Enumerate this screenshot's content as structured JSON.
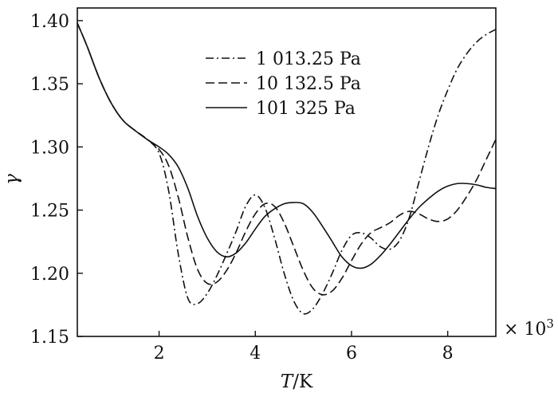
{
  "chart_data": {
    "type": "line",
    "xlabel_italic": "T",
    "xlabel_unit": "/K",
    "ylabel": "γ",
    "x_multiplier_prefix": "× 10",
    "x_multiplier_exp": "3",
    "xlim": [
      0.3,
      9.0
    ],
    "ylim": [
      1.15,
      1.41
    ],
    "xticks": [
      2,
      4,
      6,
      8
    ],
    "xtick_labels": [
      "2",
      "4",
      "6",
      "8"
    ],
    "yticks": [
      1.15,
      1.2,
      1.25,
      1.3,
      1.35,
      1.4
    ],
    "ytick_labels": [
      "1.15",
      "1.20",
      "1.25",
      "1.30",
      "1.35",
      "1.40"
    ],
    "grid": false,
    "legend_position": "top-center",
    "series": [
      {
        "name": "1 013.25 Pa",
        "style": "dashdot",
        "x": [
          0.3,
          0.5,
          0.75,
          1.0,
          1.25,
          1.5,
          1.75,
          2.0,
          2.2,
          2.4,
          2.6,
          2.8,
          3.0,
          3.2,
          3.4,
          3.6,
          3.8,
          4.0,
          4.2,
          4.4,
          4.6,
          4.8,
          5.0,
          5.2,
          5.4,
          5.6,
          5.8,
          6.0,
          6.2,
          6.4,
          6.6,
          6.8,
          7.0,
          7.2,
          7.4,
          7.6,
          7.8,
          8.0,
          8.2,
          8.4,
          8.6,
          8.8,
          9.0
        ],
        "y": [
          1.398,
          1.38,
          1.355,
          1.335,
          1.321,
          1.313,
          1.306,
          1.295,
          1.265,
          1.215,
          1.18,
          1.176,
          1.184,
          1.198,
          1.215,
          1.233,
          1.253,
          1.262,
          1.252,
          1.228,
          1.2,
          1.178,
          1.168,
          1.172,
          1.184,
          1.2,
          1.218,
          1.23,
          1.232,
          1.228,
          1.221,
          1.219,
          1.226,
          1.244,
          1.272,
          1.3,
          1.325,
          1.345,
          1.362,
          1.374,
          1.383,
          1.389,
          1.393
        ]
      },
      {
        "name": "10 132.5 Pa",
        "style": "dashed",
        "x": [
          0.3,
          0.5,
          0.75,
          1.0,
          1.25,
          1.5,
          1.75,
          2.0,
          2.2,
          2.4,
          2.6,
          2.8,
          3.0,
          3.2,
          3.4,
          3.6,
          3.8,
          4.0,
          4.2,
          4.4,
          4.6,
          4.8,
          5.0,
          5.2,
          5.4,
          5.6,
          5.8,
          6.0,
          6.2,
          6.4,
          6.6,
          6.8,
          7.0,
          7.2,
          7.4,
          7.6,
          7.8,
          8.0,
          8.2,
          8.4,
          8.6,
          8.8,
          9.0
        ],
        "y": [
          1.398,
          1.38,
          1.355,
          1.335,
          1.321,
          1.313,
          1.306,
          1.298,
          1.285,
          1.26,
          1.228,
          1.203,
          1.192,
          1.193,
          1.202,
          1.216,
          1.233,
          1.247,
          1.255,
          1.253,
          1.24,
          1.221,
          1.202,
          1.188,
          1.183,
          1.186,
          1.196,
          1.21,
          1.223,
          1.232,
          1.236,
          1.24,
          1.246,
          1.249,
          1.247,
          1.243,
          1.241,
          1.243,
          1.25,
          1.261,
          1.274,
          1.29,
          1.306
        ]
      },
      {
        "name": "101 325 Pa",
        "style": "solid",
        "x": [
          0.3,
          0.5,
          0.75,
          1.0,
          1.25,
          1.5,
          1.75,
          2.0,
          2.2,
          2.4,
          2.6,
          2.8,
          3.0,
          3.2,
          3.4,
          3.6,
          3.8,
          4.0,
          4.2,
          4.4,
          4.6,
          4.8,
          5.0,
          5.2,
          5.4,
          5.6,
          5.8,
          6.0,
          6.2,
          6.4,
          6.6,
          6.8,
          7.0,
          7.2,
          7.4,
          7.6,
          7.8,
          8.0,
          8.2,
          8.4,
          8.6,
          8.8,
          9.0
        ],
        "y": [
          1.398,
          1.38,
          1.355,
          1.335,
          1.321,
          1.313,
          1.306,
          1.3,
          1.294,
          1.284,
          1.267,
          1.245,
          1.228,
          1.217,
          1.213,
          1.216,
          1.224,
          1.235,
          1.245,
          1.251,
          1.255,
          1.256,
          1.255,
          1.248,
          1.237,
          1.225,
          1.213,
          1.206,
          1.204,
          1.207,
          1.214,
          1.223,
          1.233,
          1.243,
          1.252,
          1.259,
          1.265,
          1.269,
          1.271,
          1.271,
          1.27,
          1.268,
          1.267
        ]
      }
    ]
  }
}
